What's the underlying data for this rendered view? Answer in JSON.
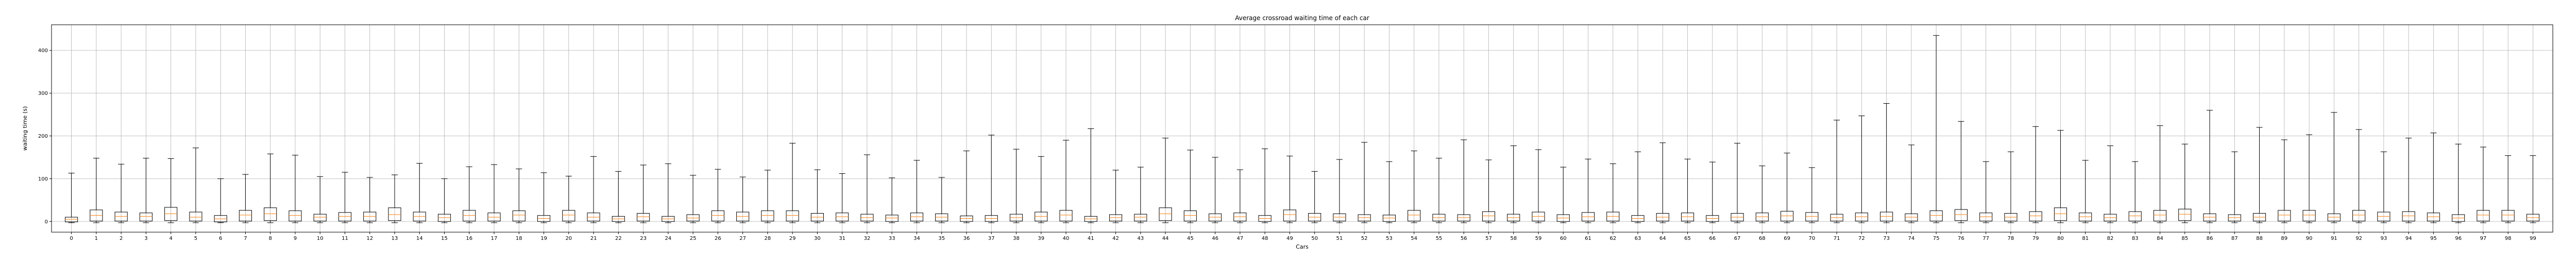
{
  "chart_data": {
    "type": "box",
    "title": "Average crossroad waiting time of each car",
    "xlabel": "Cars",
    "ylabel": "waiting time (s)",
    "ylim": [
      -25,
      460
    ],
    "yticks": [
      0,
      100,
      200,
      300,
      400
    ],
    "grid": true,
    "colors": {
      "box": "#000000",
      "median": "#ff7f0e",
      "grid": "#b0b0b0",
      "background": "#ffffff"
    },
    "categories": [
      "0",
      "1",
      "2",
      "3",
      "4",
      "5",
      "6",
      "7",
      "8",
      "9",
      "10",
      "11",
      "12",
      "13",
      "14",
      "15",
      "16",
      "17",
      "18",
      "19",
      "20",
      "21",
      "22",
      "23",
      "24",
      "25",
      "26",
      "27",
      "28",
      "29",
      "30",
      "31",
      "32",
      "33",
      "34",
      "35",
      "36",
      "37",
      "38",
      "39",
      "40",
      "41",
      "42",
      "43",
      "44",
      "45",
      "46",
      "47",
      "48",
      "49",
      "50",
      "51",
      "52",
      "53",
      "54",
      "55",
      "56",
      "57",
      "58",
      "59",
      "60",
      "61",
      "62",
      "63",
      "64",
      "65",
      "66",
      "67",
      "68",
      "69",
      "70",
      "71",
      "72",
      "73",
      "74",
      "75",
      "76",
      "77",
      "78",
      "79",
      "80",
      "81",
      "82",
      "83",
      "84",
      "85",
      "86",
      "87",
      "88",
      "89",
      "90",
      "91",
      "92",
      "93",
      "94",
      "95",
      "96",
      "97",
      "98",
      "99"
    ],
    "whisker_high": [
      113,
      148,
      134,
      148,
      147,
      172,
      100,
      110,
      158,
      155,
      105,
      115,
      103,
      109,
      136,
      100,
      128,
      133,
      123,
      114,
      106,
      152,
      117,
      132,
      135,
      108,
      122,
      104,
      120,
      183,
      121,
      112,
      156,
      102,
      143,
      103,
      165,
      202,
      169,
      152,
      190,
      217,
      120,
      127,
      195,
      167,
      150,
      121,
      170,
      153,
      117,
      145,
      185,
      140,
      165,
      148,
      191,
      144,
      177,
      168,
      127,
      146,
      135,
      163,
      184,
      146,
      139,
      183,
      130,
      160,
      126,
      237,
      247,
      276,
      179,
      435,
      234,
      140,
      163,
      222,
      213,
      143,
      177,
      140,
      224,
      181,
      260,
      163,
      220,
      191,
      203,
      255,
      215,
      163,
      195,
      207,
      181,
      174,
      154,
      154
    ],
    "q3": [
      10,
      27,
      22,
      20,
      33,
      22,
      14,
      26,
      32,
      25,
      17,
      21,
      22,
      32,
      22,
      17,
      26,
      20,
      25,
      14,
      26,
      20,
      12,
      19,
      12,
      16,
      25,
      22,
      25,
      25,
      19,
      20,
      17,
      15,
      20,
      18,
      13,
      14,
      17,
      22,
      26,
      12,
      16,
      17,
      32,
      25,
      18,
      20,
      14,
      27,
      19,
      18,
      16,
      15,
      26,
      17,
      16,
      23,
      17,
      22,
      16,
      21,
      22,
      14,
      19,
      20,
      14,
      19,
      20,
      24,
      21,
      17,
      20,
      22,
      18,
      25,
      28,
      20,
      19,
      23,
      32,
      20,
      17,
      23,
      26,
      29,
      18,
      16,
      19,
      26,
      26,
      18,
      26,
      22,
      23,
      20,
      16,
      26,
      26,
      17
    ],
    "median": [
      5,
      14,
      12,
      12,
      18,
      10,
      6,
      15,
      18,
      14,
      10,
      12,
      12,
      16,
      12,
      9,
      14,
      10,
      15,
      7,
      15,
      10,
      6,
      11,
      6,
      8,
      14,
      12,
      14,
      14,
      10,
      11,
      9,
      8,
      11,
      10,
      7,
      7,
      9,
      12,
      15,
      6,
      9,
      10,
      18,
      14,
      10,
      11,
      7,
      16,
      10,
      10,
      9,
      8,
      15,
      9,
      9,
      13,
      9,
      12,
      8,
      11,
      12,
      7,
      10,
      11,
      7,
      10,
      11,
      13,
      12,
      9,
      11,
      12,
      10,
      14,
      16,
      11,
      10,
      13,
      18,
      11,
      9,
      13,
      15,
      17,
      10,
      9,
      10,
      15,
      15,
      10,
      15,
      12,
      13,
      11,
      8,
      15,
      15,
      9
    ],
    "q1": [
      -1,
      1,
      1,
      1,
      2,
      1,
      -1,
      1,
      2,
      1,
      1,
      1,
      1,
      2,
      1,
      0,
      1,
      1,
      1,
      0,
      1,
      1,
      0,
      1,
      0,
      1,
      1,
      1,
      1,
      1,
      1,
      1,
      1,
      0,
      1,
      1,
      0,
      0,
      1,
      1,
      1,
      0,
      1,
      1,
      2,
      1,
      1,
      1,
      0,
      1,
      1,
      1,
      1,
      0,
      1,
      1,
      1,
      1,
      1,
      1,
      0,
      1,
      1,
      0,
      1,
      1,
      0,
      1,
      1,
      1,
      1,
      1,
      1,
      1,
      1,
      1,
      2,
      1,
      1,
      1,
      2,
      1,
      1,
      1,
      1,
      2,
      1,
      1,
      1,
      1,
      1,
      1,
      1,
      1,
      1,
      1,
      0,
      1,
      1,
      1
    ],
    "whisker_low": [
      -3,
      -3,
      -3,
      -3,
      -3,
      -3,
      -3,
      -3,
      -3,
      -3,
      -3,
      -3,
      -3,
      -3,
      -3,
      -3,
      -3,
      -3,
      -3,
      -3,
      -3,
      -3,
      -3,
      -3,
      -3,
      -3,
      -3,
      -3,
      -3,
      -3,
      -3,
      -3,
      -3,
      -3,
      -3,
      -3,
      -3,
      -3,
      -3,
      -3,
      -3,
      -3,
      -3,
      -3,
      -3,
      -3,
      -3,
      -3,
      -3,
      -3,
      -3,
      -3,
      -3,
      -3,
      -3,
      -3,
      -3,
      -3,
      -3,
      -3,
      -3,
      -3,
      -3,
      -3,
      -3,
      -3,
      -3,
      -3,
      -3,
      -3,
      -3,
      -3,
      -3,
      -3,
      -3,
      -3,
      -3,
      -3,
      -3,
      -3,
      -3,
      -3,
      -3,
      -3,
      -3,
      -3,
      -3,
      -3,
      -3,
      -3,
      -3,
      -3,
      -3,
      -3,
      -3,
      -3,
      -3,
      -3,
      -3,
      -3
    ]
  }
}
